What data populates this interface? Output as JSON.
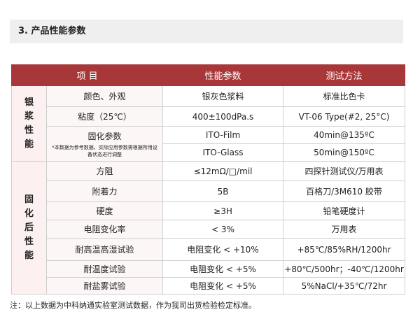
{
  "header": {
    "title": "3.  产品性能参数"
  },
  "table": {
    "columns": [
      "项 目",
      "性能参数",
      "测试方法"
    ],
    "groups": [
      {
        "label": "银浆性能",
        "rows": [
          {
            "item": "颜色、外观",
            "value": "银灰色浆料",
            "method": "标准比色卡"
          },
          {
            "item": "粘度（25℃）",
            "value": "400±100dPa.s",
            "method": "VT-06 Type(#2, 25°C)"
          },
          {
            "item": "固化参数",
            "item_note": "*本数据为参考数据，实际应用参数需根据所用设备状态进行调整",
            "subrows": [
              {
                "value": "ITO-Film",
                "method": "40min@135ºC"
              },
              {
                "value": "ITO-Glass",
                "method": "50min@150ºC"
              }
            ]
          }
        ]
      },
      {
        "label": "固化后性能",
        "rows": [
          {
            "item": "方阻",
            "value": "≤12mΩ/□/mil",
            "method": "四探针测试仪/万用表"
          },
          {
            "item": "附着力",
            "value": "5B",
            "method": "百格刀/3M610 胶带"
          },
          {
            "item": "硬度",
            "value": "≥3H",
            "method": "铅笔硬度计"
          },
          {
            "item": "电阻变化率",
            "value": "< 3%",
            "method": "万用表"
          },
          {
            "item": "耐高温高湿试验",
            "value": "电阻变化 < +10%",
            "method": "+85℃/85%RH/1200hr"
          },
          {
            "item": "耐温度试验",
            "value": "电阻变化 < +5%",
            "method": "+80℃/500hr；-40℃/1200hr"
          },
          {
            "item": "耐盐雾试验",
            "value": "电阻变化 < +5%",
            "method": "5%NaCl/+35℃/72hr"
          }
        ]
      }
    ]
  },
  "note": "注：以上数据为中科纳通实验室测试数据，作为我司出货检验检定标准。"
}
